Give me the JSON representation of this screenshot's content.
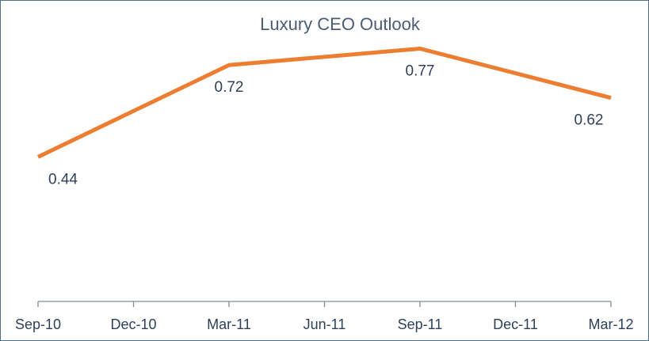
{
  "chart_data": {
    "type": "line",
    "title": "Luxury CEO Outlook",
    "categories": [
      "Sep-10",
      "Dec-10",
      "Mar-11",
      "Jun-11",
      "Sep-11",
      "Dec-11",
      "Mar-12"
    ],
    "series": [
      {
        "values": [
          0.44,
          0.58,
          0.72,
          0.745,
          0.77,
          0.695,
          0.62
        ],
        "color": "#ed7d31"
      }
    ],
    "data_labels": [
      {
        "index": 0,
        "text": "0.44"
      },
      {
        "index": 2,
        "text": "0.72"
      },
      {
        "index": 4,
        "text": "0.77"
      },
      {
        "index": 6,
        "text": "0.62"
      }
    ],
    "xlabel": "",
    "ylabel": "",
    "ylim": [
      0,
      1
    ],
    "grid": false,
    "legend": "none",
    "axis_color": "#7f8c99",
    "text_color": "#2e4156"
  }
}
